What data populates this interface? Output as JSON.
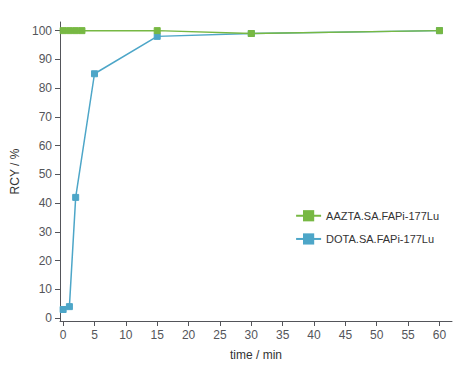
{
  "chart_data": {
    "type": "line",
    "xlabel": "time / min",
    "ylabel": "RCY / %",
    "series": [
      {
        "name": "AAZTA.SA.FAPi-177Lu",
        "color": "#77b843",
        "x": [
          0,
          1,
          2,
          3,
          15,
          30,
          60
        ],
        "values": [
          100,
          100,
          100,
          100,
          100,
          99,
          100
        ]
      },
      {
        "name": "DOTA.SA.FAPi-177Lu",
        "color": "#4da6c8",
        "x": [
          0,
          1,
          2,
          5,
          15,
          30,
          60
        ],
        "values": [
          3,
          4,
          42,
          85,
          98,
          99,
          100
        ]
      }
    ],
    "xlim": [
      -0.5,
      62
    ],
    "ylim": [
      -1,
      103
    ],
    "xticks": [
      0,
      5,
      10,
      15,
      20,
      25,
      30,
      35,
      40,
      45,
      50,
      55,
      60
    ],
    "yticks": [
      0,
      10,
      20,
      30,
      40,
      50,
      60,
      70,
      80,
      90,
      100
    ],
    "grid": false,
    "legend": "right",
    "marker": "square",
    "line_style": "solid"
  }
}
